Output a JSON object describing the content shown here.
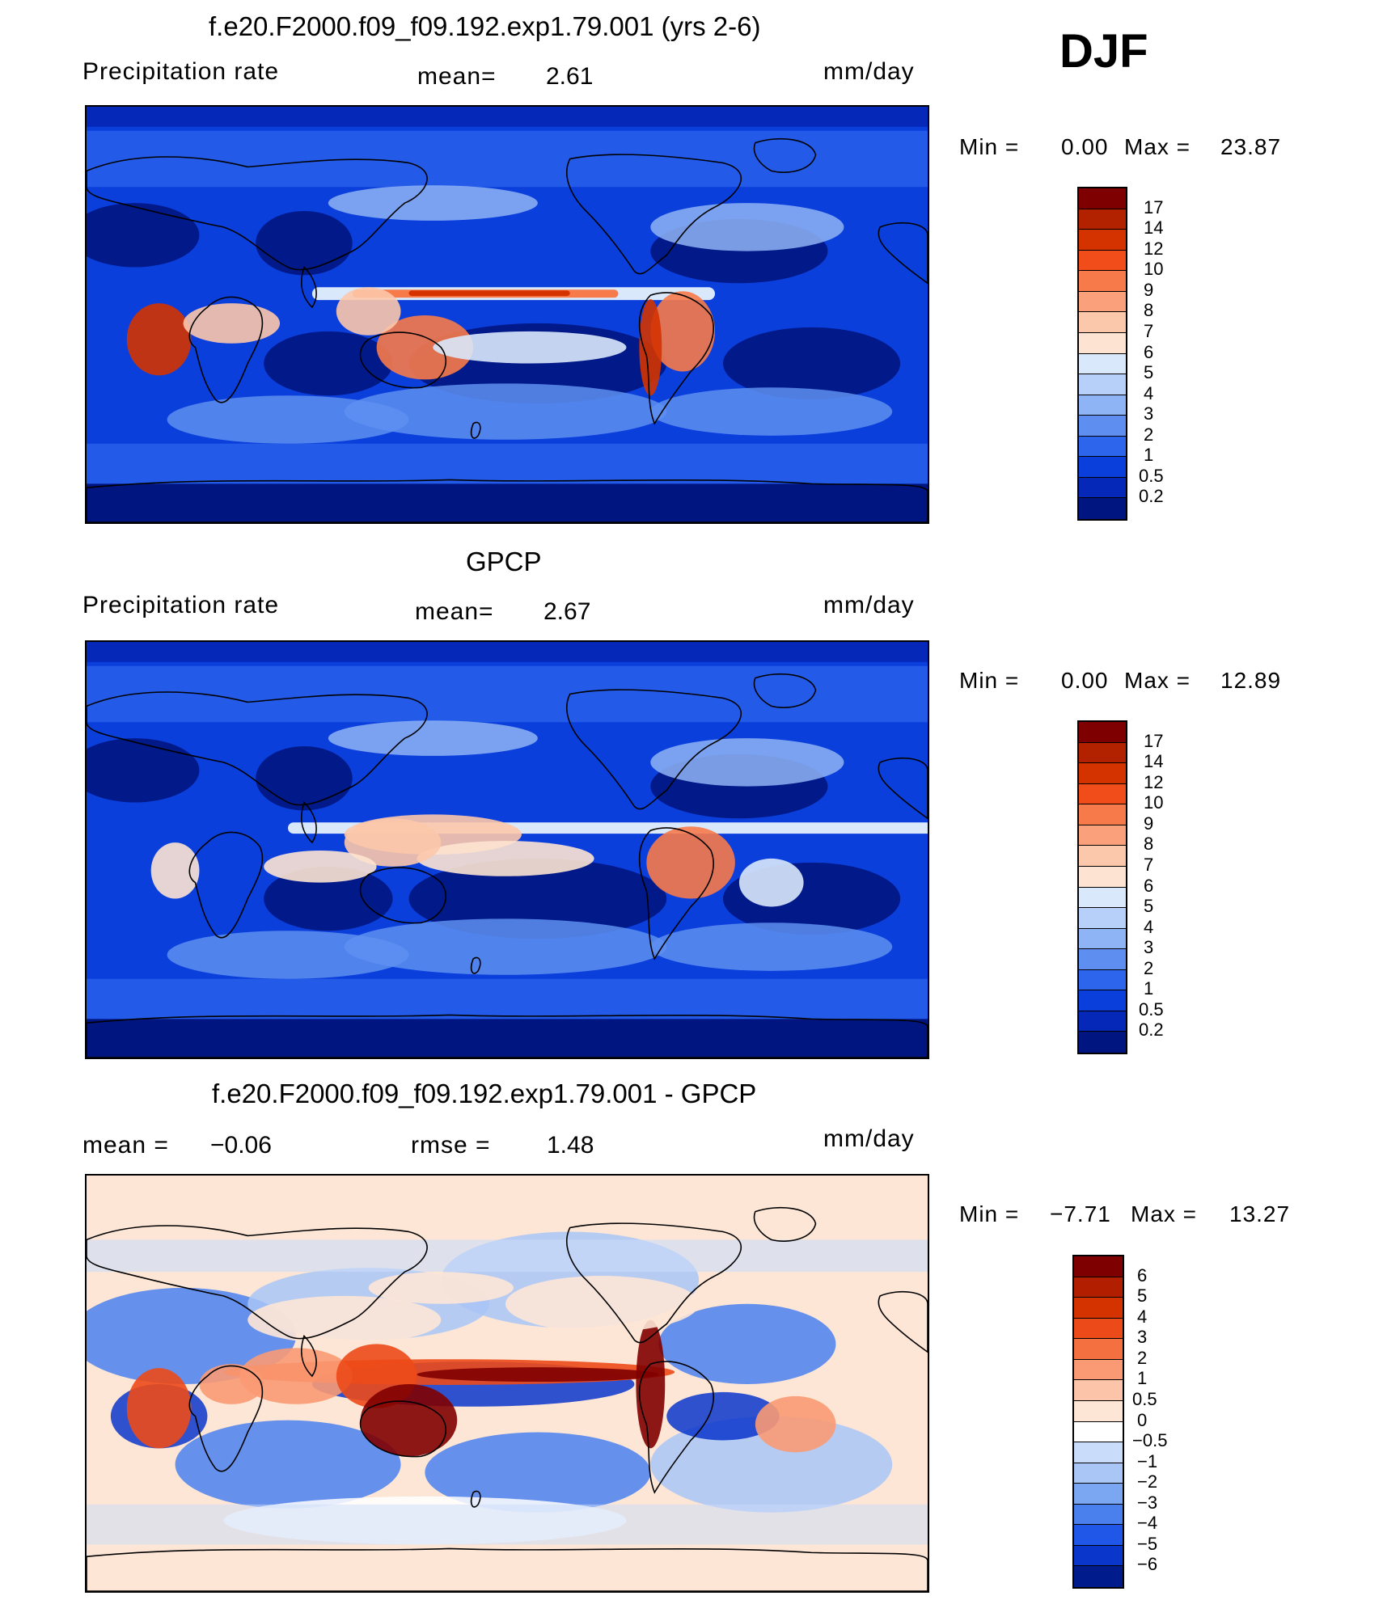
{
  "season": "DJF",
  "panels": [
    {
      "id": "model",
      "title": "f.e20.F2000.f09_f09.192.exp1.79.001 (yrs 2-6)",
      "left_label": "Precipitation  rate",
      "stat_label": "mean=",
      "stat_value": "2.61",
      "units": "mm/day",
      "min_label": "Min  =",
      "min_value": "0.00",
      "max_label": "Max  =",
      "max_value": "23.87",
      "colorbar": {
        "levels": [
          "17",
          "14",
          "12",
          "10",
          "9",
          "8",
          "7",
          "6",
          "5",
          "4",
          "3",
          "2",
          "1",
          "0.5",
          "0.2"
        ],
        "colors": [
          "#7f0000",
          "#b22200",
          "#d43300",
          "#f04d1a",
          "#f77a4a",
          "#faa07a",
          "#fcc8ab",
          "#fde4d2",
          "#d9e8fb",
          "#b7d0f9",
          "#8fb4f5",
          "#5e8ff0",
          "#2d66ec",
          "#0b3fdc",
          "#0528b8",
          "#001580"
        ]
      },
      "field": "model"
    },
    {
      "id": "obs",
      "title": "GPCP",
      "left_label": "Precipitation  rate",
      "stat_label": "mean=",
      "stat_value": "2.67",
      "units": "mm/day",
      "min_label": "Min  =",
      "min_value": "0.00",
      "max_label": "Max  =",
      "max_value": "12.89",
      "colorbar": {
        "levels": [
          "17",
          "14",
          "12",
          "10",
          "9",
          "8",
          "7",
          "6",
          "5",
          "4",
          "3",
          "2",
          "1",
          "0.5",
          "0.2"
        ],
        "colors": [
          "#7f0000",
          "#b22200",
          "#d43300",
          "#f04d1a",
          "#f77a4a",
          "#faa07a",
          "#fcc8ab",
          "#fde4d2",
          "#d9e8fb",
          "#b7d0f9",
          "#8fb4f5",
          "#5e8ff0",
          "#2d66ec",
          "#0b3fdc",
          "#0528b8",
          "#001580"
        ]
      },
      "field": "obs"
    },
    {
      "id": "diff",
      "title": "f.e20.F2000.f09_f09.192.exp1.79.001 - GPCP",
      "left_label": "mean  =",
      "left_value": "−0.06",
      "stat_label": "rmse  =",
      "stat_value": "1.48",
      "units": "mm/day",
      "min_label": "Min  =",
      "min_value": "−7.71",
      "max_label": "Max  =",
      "max_value": "13.27",
      "colorbar": {
        "levels": [
          "6",
          "5",
          "4",
          "3",
          "2",
          "1",
          "0.5",
          "0",
          "−0.5",
          "−1",
          "−2",
          "−3",
          "−4",
          "−5",
          "−6"
        ],
        "colors": [
          "#7f0000",
          "#b21f00",
          "#d43300",
          "#ec4a18",
          "#f47040",
          "#f99a74",
          "#fcc4a8",
          "#fde6d6",
          "#ffffff",
          "#c9dcfa",
          "#a9c6f7",
          "#7aa6f2",
          "#4a80ee",
          "#2157e8",
          "#0a36cc",
          "#001b8c"
        ]
      },
      "field": "diff"
    }
  ]
}
